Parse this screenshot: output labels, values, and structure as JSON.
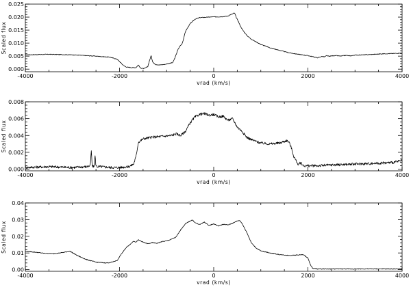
{
  "chart_data": [
    {
      "type": "line",
      "xlabel": "vrad (km/s)",
      "ylabel": "Scaled flux",
      "xlim": [
        -4000,
        4000
      ],
      "ylim": [
        -0.001,
        0.025
      ],
      "xticks": [
        -4000,
        -2000,
        0,
        2000,
        4000
      ],
      "xtick_labels": [
        "-4000",
        "-2000",
        "0",
        "2000",
        "4000"
      ],
      "yticks": [
        0.0,
        0.005,
        0.01,
        0.015,
        0.02,
        0.025
      ],
      "ytick_labels": [
        "0.000",
        "0.005",
        "0.010",
        "0.015",
        "0.020",
        "0.025"
      ],
      "noise": 0.00012,
      "series": [
        {
          "x": [
            -4000,
            -3500,
            -3000,
            -2500,
            -2200,
            -2050,
            -1950,
            -1900,
            -1850,
            -1750,
            -1650,
            -1600,
            -1560,
            -1520,
            -1480,
            -1440,
            -1400,
            -1360,
            -1330,
            -1300,
            -1270,
            -1230,
            -1150,
            -1050,
            -950,
            -870,
            -820,
            -760,
            -720,
            -680,
            -650,
            -600,
            -500,
            -400,
            -300,
            -200,
            -100,
            0,
            100,
            200,
            300,
            350,
            400,
            430,
            450,
            480,
            520,
            560,
            600,
            650,
            700,
            800,
            1000,
            1200,
            1400,
            1600,
            1800,
            2000,
            2100,
            2200,
            2250,
            2300,
            2350,
            2400,
            2450,
            2500,
            2600,
            2700,
            2800,
            2900,
            3000,
            3200,
            3400,
            3600,
            3800,
            4000
          ],
          "values": [
            0.0055,
            0.0057,
            0.0055,
            0.005,
            0.0046,
            0.0038,
            0.002,
            0.0012,
            0.0008,
            0.0006,
            0.0006,
            0.0016,
            0.0005,
            0.0003,
            0.0002,
            0.0006,
            0.001,
            0.0035,
            0.0052,
            0.003,
            0.0022,
            0.0018,
            0.0016,
            0.0018,
            0.0022,
            0.0025,
            0.0045,
            0.0075,
            0.0088,
            0.0095,
            0.011,
            0.0145,
            0.0175,
            0.0192,
            0.0198,
            0.0199,
            0.02,
            0.0201,
            0.0201,
            0.0202,
            0.0204,
            0.0209,
            0.0212,
            0.0216,
            0.0213,
            0.0198,
            0.0185,
            0.0168,
            0.0155,
            0.0142,
            0.013,
            0.0115,
            0.0095,
            0.0082,
            0.0072,
            0.0063,
            0.0057,
            0.0052,
            0.0048,
            0.0044,
            0.0046,
            0.0049,
            0.0047,
            0.0052,
            0.0049,
            0.0051,
            0.0052,
            0.005,
            0.0053,
            0.0051,
            0.0054,
            0.0055,
            0.0057,
            0.0059,
            0.006,
            0.0062
          ]
        }
      ]
    },
    {
      "type": "line",
      "xlabel": "vrad (km/s)",
      "ylabel": "Scaled flux",
      "xlim": [
        -4000,
        4000
      ],
      "ylim": [
        -0.0002,
        0.008
      ],
      "xticks": [
        -4000,
        -2000,
        0,
        2000,
        4000
      ],
      "xtick_labels": [
        "-4000",
        "-2000",
        "0",
        "2000",
        "4000"
      ],
      "yticks": [
        0.0,
        0.002,
        0.004,
        0.006,
        0.008
      ],
      "ytick_labels": [
        "0.000",
        "0.002",
        "0.004",
        "0.006",
        "0.008"
      ],
      "noise": 0.00015,
      "series": [
        {
          "x": [
            -4000,
            -3500,
            -3000,
            -2700,
            -2620,
            -2600,
            -2580,
            -2560,
            -2540,
            -2520,
            -2500,
            -2480,
            -2460,
            -2400,
            -2200,
            -2000,
            -1800,
            -1700,
            -1650,
            -1600,
            -1500,
            -1300,
            -1100,
            -900,
            -800,
            -700,
            -600,
            -500,
            -400,
            -300,
            -200,
            -100,
            0,
            100,
            200,
            300,
            400,
            450,
            500,
            600,
            700,
            800,
            900,
            1000,
            1200,
            1400,
            1500,
            1550,
            1600,
            1650,
            1700,
            1800,
            1850,
            1900,
            2000,
            2200,
            2500,
            3000,
            3500,
            3800,
            4000
          ],
          "values": [
            0.0002,
            0.0003,
            0.0002,
            0.0003,
            0.0004,
            0.0022,
            0.0004,
            0.0003,
            0.0003,
            0.0016,
            0.0004,
            0.0003,
            0.0003,
            0.0003,
            0.0002,
            0.0002,
            0.0003,
            0.0006,
            0.0015,
            0.0032,
            0.0036,
            0.0038,
            0.0039,
            0.004,
            0.0042,
            0.004,
            0.0045,
            0.0055,
            0.0062,
            0.0065,
            0.0066,
            0.0064,
            0.0065,
            0.0062,
            0.0063,
            0.0058,
            0.006,
            0.0055,
            0.005,
            0.0045,
            0.0038,
            0.0035,
            0.0033,
            0.0031,
            0.003,
            0.0031,
            0.0033,
            0.0034,
            0.0032,
            0.0025,
            0.0015,
            0.0005,
            0.0008,
            0.0004,
            0.0004,
            0.0004,
            0.0005,
            0.0006,
            0.0007,
            0.0008,
            0.001
          ]
        }
      ]
    },
    {
      "type": "line",
      "xlabel": "vrad (km/s)",
      "ylabel": "Scaled flux",
      "xlim": [
        -4000,
        4000
      ],
      "ylim": [
        -0.001,
        0.04
      ],
      "xticks": [
        -4000,
        -2000,
        0,
        2000,
        4000
      ],
      "xtick_labels": [
        "-4000",
        "-2000",
        "0",
        "2000",
        "4000"
      ],
      "yticks": [
        0.0,
        0.01,
        0.02,
        0.03,
        0.04
      ],
      "ytick_labels": [
        "0.00",
        "0.01",
        "0.02",
        "0.03",
        "0.04"
      ],
      "noise": 0.0002,
      "series": [
        {
          "x": [
            -4000,
            -3800,
            -3600,
            -3400,
            -3200,
            -3050,
            -2900,
            -2700,
            -2500,
            -2300,
            -2200,
            -2050,
            -1950,
            -1850,
            -1750,
            -1700,
            -1650,
            -1600,
            -1500,
            -1400,
            -1300,
            -1200,
            -1100,
            -1000,
            -900,
            -800,
            -700,
            -600,
            -500,
            -450,
            -400,
            -300,
            -200,
            -100,
            0,
            100,
            200,
            300,
            400,
            500,
            550,
            600,
            700,
            800,
            900,
            1000,
            1200,
            1400,
            1600,
            1800,
            1900,
            2000,
            2050,
            2100,
            2200,
            2400,
            2800,
            3200,
            3600,
            4000
          ],
          "values": [
            0.011,
            0.0105,
            0.0098,
            0.0095,
            0.0103,
            0.011,
            0.0085,
            0.006,
            0.0045,
            0.004,
            0.0042,
            0.0055,
            0.0098,
            0.0135,
            0.0158,
            0.0172,
            0.0165,
            0.0178,
            0.0165,
            0.0155,
            0.0162,
            0.0158,
            0.0168,
            0.0172,
            0.0182,
            0.0195,
            0.024,
            0.0275,
            0.0292,
            0.0298,
            0.0282,
            0.027,
            0.0285,
            0.0265,
            0.0275,
            0.0262,
            0.0272,
            0.0268,
            0.0278,
            0.0292,
            0.0295,
            0.0278,
            0.0225,
            0.016,
            0.013,
            0.0112,
            0.01,
            0.009,
            0.0085,
            0.0088,
            0.009,
            0.007,
            0.003,
            0.0008,
            0.0004,
            0.0004,
            0.0004,
            0.0004,
            0.0004,
            0.0004
          ]
        }
      ]
    }
  ]
}
